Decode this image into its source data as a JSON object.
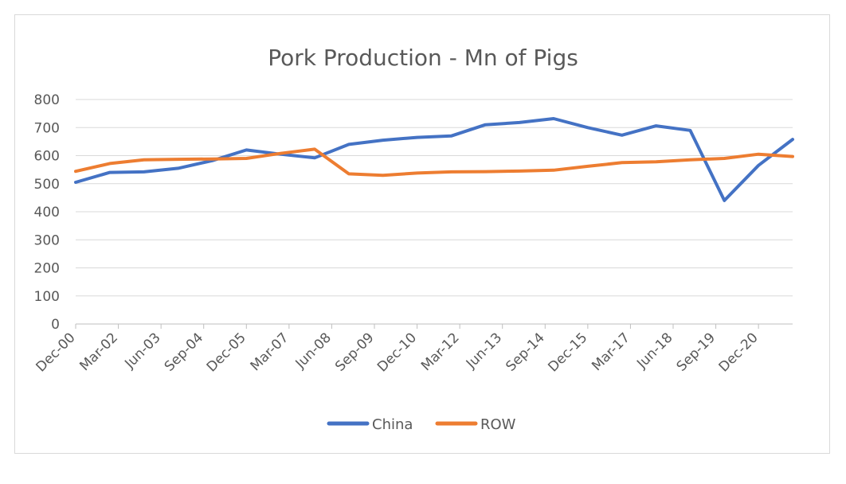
{
  "chart_data": {
    "type": "line",
    "title": "Pork Production - Mn of Pigs",
    "xlabel": "",
    "ylabel": "",
    "ylim": [
      0,
      800
    ],
    "yticks": [
      0,
      100,
      200,
      300,
      400,
      500,
      600,
      700,
      800
    ],
    "grid": true,
    "legend_position": "bottom",
    "x_tick_labels": [
      "Dec-00",
      "Mar-02",
      "Jun-03",
      "Sep-04",
      "Dec-05",
      "Mar-07",
      "Jun-08",
      "Sep-09",
      "Dec-10",
      "Mar-12",
      "Jun-13",
      "Sep-14",
      "Dec-15",
      "Mar-17",
      "Jun-18",
      "Sep-19",
      "Dec-20"
    ],
    "series": [
      {
        "name": "China",
        "color": "#4472c4",
        "points": [
          [
            "Dec-00",
            505
          ],
          [
            "Dec-01",
            540
          ],
          [
            "Dec-02",
            542
          ],
          [
            "Dec-03",
            555
          ],
          [
            "Dec-04",
            582
          ],
          [
            "Dec-05",
            620
          ],
          [
            "Dec-06",
            605
          ],
          [
            "Dec-07",
            592
          ],
          [
            "Dec-08",
            640
          ],
          [
            "Dec-09",
            655
          ],
          [
            "Dec-10",
            665
          ],
          [
            "Dec-11",
            670
          ],
          [
            "Dec-12",
            710
          ],
          [
            "Dec-13",
            718
          ],
          [
            "Dec-14",
            732
          ],
          [
            "Dec-15",
            700
          ],
          [
            "Dec-16",
            673
          ],
          [
            "Dec-17",
            706
          ],
          [
            "Dec-18",
            690
          ],
          [
            "Dec-19",
            440
          ],
          [
            "Dec-20",
            565
          ],
          [
            "Dec-21",
            658
          ]
        ]
      },
      {
        "name": "ROW",
        "color": "#ed7d31",
        "points": [
          [
            "Dec-00",
            544
          ],
          [
            "Dec-01",
            572
          ],
          [
            "Dec-02",
            585
          ],
          [
            "Dec-03",
            587
          ],
          [
            "Dec-04",
            588
          ],
          [
            "Dec-05",
            590
          ],
          [
            "Dec-06",
            608
          ],
          [
            "Dec-07",
            623
          ],
          [
            "Dec-08",
            535
          ],
          [
            "Dec-09",
            530
          ],
          [
            "Dec-10",
            538
          ],
          [
            "Dec-11",
            542
          ],
          [
            "Dec-12",
            543
          ],
          [
            "Dec-13",
            545
          ],
          [
            "Dec-14",
            548
          ],
          [
            "Dec-15",
            562
          ],
          [
            "Dec-16",
            575
          ],
          [
            "Dec-17",
            578
          ],
          [
            "Dec-18",
            585
          ],
          [
            "Dec-19",
            590
          ],
          [
            "Dec-20",
            605
          ],
          [
            "Dec-21",
            597
          ]
        ]
      }
    ]
  }
}
